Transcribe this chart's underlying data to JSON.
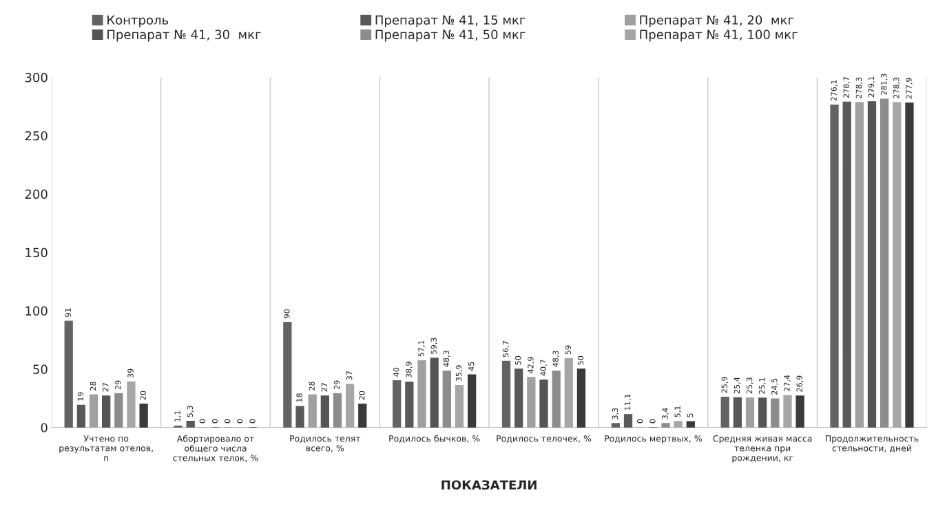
{
  "chart_data": {
    "type": "bar",
    "categories": [
      "Учтено по результатам отелов, n",
      "Абортировало от общего числа стельных телок, %",
      "Родилось телят всего, %",
      "Родилось бычков, %",
      "Родилось телочек, %",
      "Родилось мертвых, %",
      "Средняя живая масса теленка при рождении, кг",
      "Продолжительность стельности, дней"
    ],
    "series": [
      {
        "name": "Контроль",
        "color": "#636363",
        "values": [
          91,
          1.1,
          90,
          40,
          56.7,
          3.3,
          25.9,
          276.1
        ],
        "value_labels": [
          "91",
          "1,1",
          "90",
          "40",
          "56,7",
          "3,3",
          "25,9",
          "276,1"
        ]
      },
      {
        "name": "Препарат № 41, 15 мкг",
        "color": "#595959",
        "values": [
          19,
          5.3,
          18,
          38.9,
          50,
          11.1,
          25.4,
          278.7
        ],
        "value_labels": [
          "19",
          "5,3",
          "18",
          "38,9",
          "50",
          "11,1",
          "25,4",
          "278,7"
        ]
      },
      {
        "name": "Препарат № 41, 20  мкг",
        "color": "#a0a0a0",
        "values": [
          28,
          0,
          28,
          57.1,
          42.9,
          0,
          25.3,
          278.3
        ],
        "value_labels": [
          "28",
          "0",
          "28",
          "57,1",
          "42,9",
          "0",
          "25,3",
          "278,3"
        ]
      },
      {
        "name": "Препарат № 41, 30  мкг",
        "color": "#555555",
        "values": [
          27,
          0,
          27,
          59.3,
          40.7,
          0,
          25.1,
          279.1
        ],
        "value_labels": [
          "27",
          "0",
          "27",
          "59,3",
          "40,7",
          "0",
          "25,1",
          "279,1"
        ]
      },
      {
        "name": "Препарат № 41, 50 мкг",
        "color": "#8c8c8c",
        "values": [
          29,
          0,
          29,
          48.3,
          48.3,
          3.4,
          24.5,
          281.3
        ],
        "value_labels": [
          "29",
          "0",
          "29",
          "48,3",
          "48,3",
          "3,4",
          "24,5",
          "281,3"
        ]
      },
      {
        "name": "Препарат № 41, 100 мкг",
        "color": "#a6a6a6",
        "values": [
          39,
          0,
          37,
          35.9,
          59,
          5.1,
          27.4,
          278.3
        ],
        "value_labels": [
          "39",
          "0",
          "37",
          "35,9",
          "59",
          "5,1",
          "27,4",
          "278,3"
        ]
      },
      {
        "color": "#3a3a3a",
        "values": [
          20,
          0,
          20,
          45,
          50,
          5,
          26.9,
          277.9
        ],
        "value_labels": [
          "20",
          "0",
          "20",
          "45",
          "50",
          "5",
          "26,9",
          "277,9"
        ]
      }
    ],
    "xlabel": "ПОКАЗАТЕЛИ",
    "ylim": [
      0,
      300
    ],
    "yticks": [
      0,
      50,
      100,
      150,
      200,
      250,
      300
    ],
    "grid": "x",
    "legend": "top"
  }
}
